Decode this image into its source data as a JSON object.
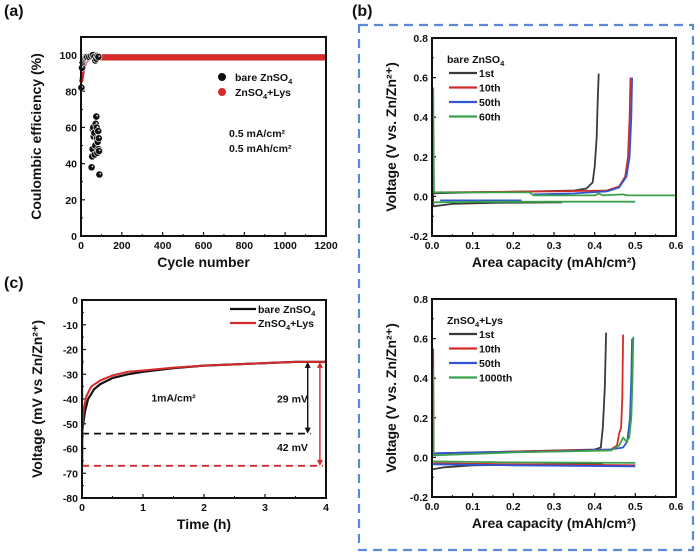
{
  "figure": {
    "frame_color": "#5b8bd8",
    "panels": [
      "(a)",
      "(b)",
      "(c)"
    ]
  },
  "chart_data": [
    {
      "id": "a",
      "panel_label": "(a)",
      "type": "scatter",
      "title": "",
      "xlabel": "Cycle number",
      "ylabel": "Coulombic efficiency (%)",
      "xlim": [
        0,
        1200
      ],
      "ylim": [
        0,
        110
      ],
      "xticks": [
        0,
        200,
        400,
        600,
        800,
        1000,
        1200
      ],
      "yticks": [
        0,
        20,
        40,
        60,
        80,
        100
      ],
      "grid": false,
      "legend_position": "top-right",
      "annotations": [
        "0.5 mA/cm²",
        "0.5 mAh/cm²"
      ],
      "series": [
        {
          "name": "bare ZnSO4",
          "legend_base": "bare ZnSO",
          "legend_sub": "4",
          "legend_after": "",
          "color": "#111111",
          "points": [
            [
              2,
              82
            ],
            [
              5,
              93
            ],
            [
              8,
              96
            ],
            [
              12,
              97
            ],
            [
              15,
              98
            ],
            [
              20,
              98.5
            ],
            [
              25,
              99
            ],
            [
              30,
              99
            ],
            [
              40,
              99
            ],
            [
              50,
              99.5
            ],
            [
              58,
              100
            ],
            [
              65,
              99
            ],
            [
              70,
              97
            ],
            [
              75,
              98
            ],
            [
              80,
              99.5
            ],
            [
              85,
              99
            ],
            [
              52,
              38
            ],
            [
              55,
              44
            ],
            [
              57,
              48
            ],
            [
              58,
              59
            ],
            [
              60,
              60
            ],
            [
              62,
              55
            ],
            [
              65,
              57
            ],
            [
              67,
              45
            ],
            [
              70,
              50
            ],
            [
              72,
              62
            ],
            [
              75,
              66
            ],
            [
              77,
              60
            ],
            [
              78,
              54
            ],
            [
              80,
              46
            ],
            [
              82,
              52
            ],
            [
              84,
              58
            ],
            [
              85,
              48
            ],
            [
              87,
              54
            ],
            [
              88,
              47
            ],
            [
              90,
              34
            ]
          ]
        },
        {
          "name": "ZnSO4+Lys",
          "legend_base": "ZnSO",
          "legend_sub": "4",
          "legend_after": "+Lys",
          "color": "#d42a2a",
          "band": {
            "x_start": 10,
            "x_end": 1200,
            "y_low": 97,
            "y_high": 100.5
          },
          "ramp": [
            [
              0,
              85
            ],
            [
              5,
              88
            ],
            [
              10,
              92
            ],
            [
              20,
              96
            ],
            [
              35,
              98
            ],
            [
              60,
              98.5
            ],
            [
              1200,
              99
            ]
          ]
        }
      ]
    },
    {
      "id": "b-top",
      "panel_label": "(b)",
      "type": "line",
      "title": "",
      "xlabel": "Area capacity (mAh/cm²)",
      "ylabel": "Voltage (V vs. Zn/Zn²⁺)",
      "xlim": [
        0,
        0.6
      ],
      "ylim": [
        -0.2,
        0.8
      ],
      "xticks": [
        "0.0",
        "0.1",
        "0.2",
        "0.3",
        "0.4",
        "0.5",
        "0.6"
      ],
      "yticks": [
        "-0.2",
        "0.0",
        "0.2",
        "0.4",
        "0.6",
        "0.8"
      ],
      "grid": false,
      "legend_position": "top-left",
      "legend_title_base": "bare ZnSO",
      "legend_title_sub": "4",
      "legend_title_after": "",
      "series": [
        {
          "name": "1st",
          "color": "#3a3a3a",
          "points": [
            [
              0,
              0.3
            ],
            [
              0.003,
              -0.05
            ],
            [
              0.05,
              -0.038
            ],
            [
              0.15,
              -0.033
            ],
            [
              0.32,
              -0.03
            ],
            [
              null,
              null
            ],
            [
              0.003,
              0.015
            ],
            [
              0.1,
              0.02
            ],
            [
              0.25,
              0.025
            ],
            [
              0.35,
              0.03
            ],
            [
              0.38,
              0.04
            ],
            [
              0.395,
              0.07
            ],
            [
              0.4,
              0.15
            ],
            [
              0.405,
              0.3
            ],
            [
              0.407,
              0.45
            ],
            [
              0.41,
              0.62
            ]
          ]
        },
        {
          "name": "10th",
          "color": "#d42a2a",
          "points": [
            [
              0.003,
              0.02
            ],
            [
              0.1,
              0.022
            ],
            [
              0.3,
              0.025
            ],
            [
              0.43,
              0.03
            ],
            [
              0.46,
              0.05
            ],
            [
              0.475,
              0.1
            ],
            [
              0.482,
              0.2
            ],
            [
              0.486,
              0.4
            ],
            [
              0.488,
              0.6
            ]
          ]
        },
        {
          "name": "50th",
          "color": "#2f55d4",
          "points": [
            [
              0.02,
              -0.02
            ],
            [
              0.22,
              -0.02
            ],
            [
              null,
              null
            ],
            [
              0.25,
              0.01
            ],
            [
              0.35,
              0.015
            ],
            [
              0.43,
              0.025
            ],
            [
              0.46,
              0.045
            ],
            [
              0.478,
              0.1
            ],
            [
              0.486,
              0.2
            ],
            [
              0.49,
              0.4
            ],
            [
              0.492,
              0.6
            ]
          ]
        },
        {
          "name": "60th",
          "color": "#3aa24a",
          "points": [
            [
              0.003,
              0.55
            ],
            [
              0.005,
              0.02
            ],
            [
              0.1,
              0.02
            ],
            [
              0.24,
              0.02
            ],
            [
              0.25,
              0.005
            ],
            [
              0.4,
              0.005
            ],
            [
              0.41,
              0.015
            ],
            [
              0.42,
              0.005
            ],
            [
              0.47,
              0.01
            ],
            [
              0.48,
              0.005
            ],
            [
              0.6,
              0.005
            ],
            [
              null,
              null
            ],
            [
              0.003,
              -0.03
            ],
            [
              0.1,
              -0.028
            ],
            [
              0.3,
              -0.027
            ],
            [
              0.5,
              -0.027
            ]
          ]
        }
      ]
    },
    {
      "id": "b-bottom",
      "panel_label": "",
      "type": "line",
      "title": "",
      "xlabel": "Area capacity (mAh/cm²)",
      "ylabel": "Voltage (V vs. Zn/Zn²⁺)",
      "xlim": [
        0,
        0.6
      ],
      "ylim": [
        -0.2,
        0.8
      ],
      "xticks": [
        "0.0",
        "0.1",
        "0.2",
        "0.3",
        "0.4",
        "0.5",
        "0.6"
      ],
      "yticks": [
        "-0.2",
        "0.0",
        "0.2",
        "0.4",
        "0.6",
        "0.8"
      ],
      "grid": false,
      "legend_position": "top-left",
      "legend_title_base": "ZnSO",
      "legend_title_sub": "4",
      "legend_title_after": "+Lys",
      "series": [
        {
          "name": "1st",
          "color": "#3a3a3a",
          "points": [
            [
              0.002,
              -0.06
            ],
            [
              0.03,
              -0.05
            ],
            [
              0.1,
              -0.04
            ],
            [
              0.3,
              -0.035
            ],
            [
              0.42,
              -0.035
            ],
            [
              null,
              null
            ],
            [
              0.003,
              0.02
            ],
            [
              0.2,
              0.03
            ],
            [
              0.4,
              0.04
            ],
            [
              0.415,
              0.05
            ],
            [
              0.42,
              0.15
            ],
            [
              0.425,
              0.35
            ],
            [
              0.428,
              0.63
            ]
          ]
        },
        {
          "name": "10th",
          "color": "#d42a2a",
          "points": [
            [
              0.003,
              0.55
            ],
            [
              0.004,
              0.02
            ],
            [
              0.2,
              0.03
            ],
            [
              0.44,
              0.04
            ],
            [
              0.455,
              0.06
            ],
            [
              0.46,
              0.12
            ],
            [
              0.465,
              0.15
            ],
            [
              0.468,
              0.3
            ],
            [
              0.47,
              0.62
            ],
            [
              null,
              null
            ],
            [
              0.003,
              -0.03
            ],
            [
              0.2,
              -0.035
            ],
            [
              0.5,
              -0.04
            ]
          ]
        },
        {
          "name": "50th",
          "color": "#2f55d4",
          "points": [
            [
              0.003,
              0.02
            ],
            [
              0.1,
              0.025
            ],
            [
              0.3,
              0.03
            ],
            [
              0.44,
              0.04
            ],
            [
              0.47,
              0.05
            ],
            [
              0.48,
              0.08
            ],
            [
              0.487,
              0.2
            ],
            [
              0.49,
              0.4
            ],
            [
              0.492,
              0.6
            ],
            [
              null,
              null
            ],
            [
              0.003,
              -0.035
            ],
            [
              0.2,
              -0.04
            ],
            [
              0.5,
              -0.045
            ]
          ]
        },
        {
          "name": "1000th",
          "color": "#3aa24a",
          "points": [
            [
              0.003,
              0.45
            ],
            [
              0.004,
              0.01
            ],
            [
              0.2,
              0.025
            ],
            [
              0.44,
              0.035
            ],
            [
              0.46,
              0.06
            ],
            [
              0.47,
              0.1
            ],
            [
              0.478,
              0.08
            ],
            [
              0.485,
              0.1
            ],
            [
              0.49,
              0.2
            ],
            [
              0.493,
              0.4
            ],
            [
              0.495,
              0.61
            ],
            [
              null,
              null
            ],
            [
              0.003,
              -0.02
            ],
            [
              0.2,
              -0.025
            ],
            [
              0.5,
              -0.028
            ]
          ]
        }
      ]
    },
    {
      "id": "c",
      "panel_label": "(c)",
      "type": "line",
      "title": "",
      "xlabel": "Time (h)",
      "ylabel": "Voltage (mV vs Zn/Zn²⁺)",
      "xlim": [
        0,
        4
      ],
      "ylim": [
        -80,
        0
      ],
      "xticks": [
        "0",
        "1",
        "2",
        "3",
        "4"
      ],
      "yticks": [
        "0",
        "-10",
        "-20",
        "-30",
        "-40",
        "-50",
        "-60",
        "-70",
        "-80"
      ],
      "grid": false,
      "legend_position": "top-right",
      "annotations": {
        "current": "1mA/cm²",
        "delta_bare": "29 mV",
        "delta_lys": "42 mV",
        "bare_min": -54,
        "lys_min": -67,
        "plateau": -25
      },
      "series": [
        {
          "name": "bare ZnSO4",
          "legend_base": "bare ZnSO",
          "legend_sub": "4",
          "legend_after": "",
          "color": "#111111",
          "points": [
            [
              0,
              -54
            ],
            [
              0.02,
              -50
            ],
            [
              0.05,
              -45
            ],
            [
              0.1,
              -40
            ],
            [
              0.2,
              -36
            ],
            [
              0.3,
              -34
            ],
            [
              0.5,
              -31.5
            ],
            [
              0.75,
              -30
            ],
            [
              1,
              -29
            ],
            [
              1.5,
              -27.5
            ],
            [
              2,
              -26.5
            ],
            [
              2.5,
              -26
            ],
            [
              3,
              -25.5
            ],
            [
              3.5,
              -25
            ],
            [
              4,
              -25
            ]
          ]
        },
        {
          "name": "ZnSO4+Lys",
          "legend_base": "ZnSO",
          "legend_sub": "4",
          "legend_after": "+Lys",
          "color": "#d42a2a",
          "points": [
            [
              0,
              0
            ],
            [
              0.005,
              -67
            ],
            [
              0.01,
              -50
            ],
            [
              0.03,
              -44
            ],
            [
              0.07,
              -39
            ],
            [
              0.15,
              -35
            ],
            [
              0.3,
              -32.5
            ],
            [
              0.5,
              -30.5
            ],
            [
              0.75,
              -29
            ],
            [
              1,
              -28.5
            ],
            [
              1.5,
              -27.3
            ],
            [
              2,
              -26.5
            ],
            [
              2.5,
              -26
            ],
            [
              3,
              -25.5
            ],
            [
              3.5,
              -25
            ],
            [
              4,
              -25
            ]
          ]
        }
      ]
    }
  ]
}
